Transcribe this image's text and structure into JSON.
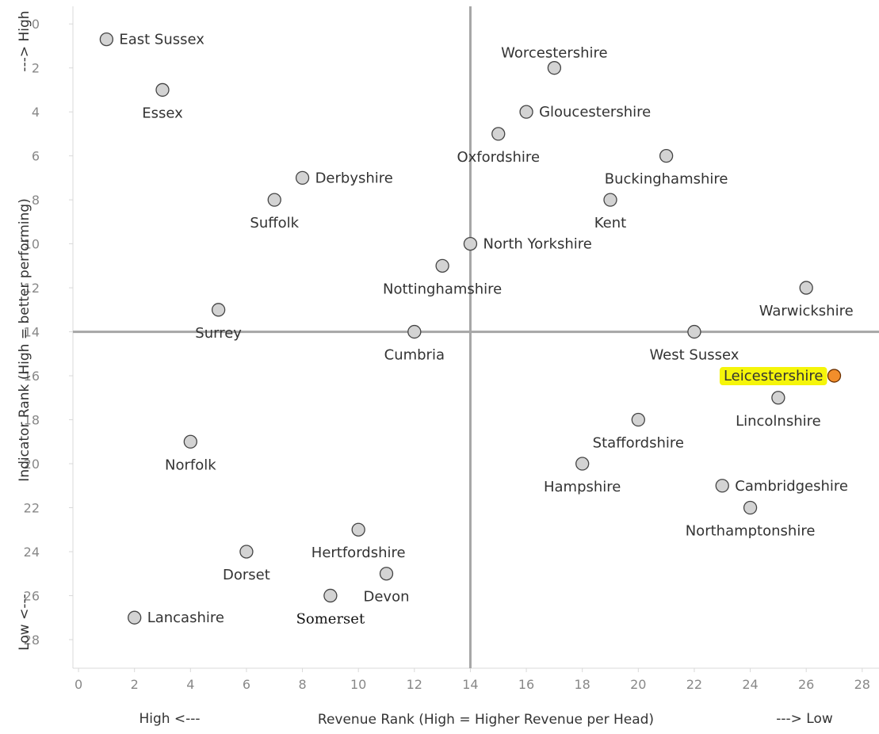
{
  "chart_data": {
    "type": "scatter",
    "xlabel": "Revenue Rank (High = Higher Revenue per Head)",
    "ylabel": "Indicator Rank (High = better performing)",
    "x_low_note": "High <---",
    "x_high_note": "---> Low",
    "y_top_note": "---> High",
    "y_bottom_note": "Low <---",
    "xlim": [
      -0.2,
      28.6
    ],
    "ylim": [
      -0.8,
      29.3
    ],
    "y_inverted": true,
    "x_ticks": [
      0,
      2,
      4,
      6,
      8,
      10,
      12,
      14,
      16,
      18,
      20,
      22,
      24,
      26,
      28
    ],
    "y_ticks": [
      0,
      2,
      4,
      6,
      8,
      10,
      12,
      14,
      16,
      18,
      20,
      22,
      24,
      26,
      28
    ],
    "reference_lines": {
      "x": 14,
      "y": 14
    },
    "point_color": "#d3d3d3",
    "highlight_color": "#f28e2b",
    "highlight_label_bg": "#f5f50a",
    "points": [
      {
        "label": "East Sussex",
        "x": 1,
        "y": 0.7,
        "label_pos": "right"
      },
      {
        "label": "Essex",
        "x": 3,
        "y": 3,
        "label_pos": "below"
      },
      {
        "label": "Worcestershire",
        "x": 17,
        "y": 2,
        "label_pos": "above"
      },
      {
        "label": "Gloucestershire",
        "x": 16,
        "y": 4,
        "label_pos": "right"
      },
      {
        "label": "Oxfordshire",
        "x": 15,
        "y": 5,
        "label_pos": "below"
      },
      {
        "label": "Buckinghamshire",
        "x": 21,
        "y": 6,
        "label_pos": "below"
      },
      {
        "label": "Derbyshire",
        "x": 8,
        "y": 7,
        "label_pos": "right"
      },
      {
        "label": "Suffolk",
        "x": 7,
        "y": 8,
        "label_pos": "below"
      },
      {
        "label": "Kent",
        "x": 19,
        "y": 8,
        "label_pos": "below"
      },
      {
        "label": "North Yorkshire",
        "x": 14,
        "y": 10,
        "label_pos": "right"
      },
      {
        "label": "Nottinghamshire",
        "x": 13,
        "y": 11,
        "label_pos": "below"
      },
      {
        "label": "Warwickshire",
        "x": 26,
        "y": 12,
        "label_pos": "below"
      },
      {
        "label": "Surrey",
        "x": 5,
        "y": 13,
        "label_pos": "below"
      },
      {
        "label": "Cumbria",
        "x": 12,
        "y": 14,
        "label_pos": "below"
      },
      {
        "label": "West Sussex",
        "x": 22,
        "y": 14,
        "label_pos": "below"
      },
      {
        "label": "Leicestershire",
        "x": 27,
        "y": 16,
        "label_pos": "left",
        "highlight": true
      },
      {
        "label": "Lincolnshire",
        "x": 25,
        "y": 17,
        "label_pos": "below"
      },
      {
        "label": "Staffordshire",
        "x": 20,
        "y": 18,
        "label_pos": "below"
      },
      {
        "label": "Norfolk",
        "x": 4,
        "y": 19,
        "label_pos": "below"
      },
      {
        "label": "Hampshire",
        "x": 18,
        "y": 20,
        "label_pos": "below"
      },
      {
        "label": "Cambridgeshire",
        "x": 23,
        "y": 21,
        "label_pos": "right"
      },
      {
        "label": "Northamptonshire",
        "x": 24,
        "y": 22,
        "label_pos": "below"
      },
      {
        "label": "Hertfordshire",
        "x": 10,
        "y": 23,
        "label_pos": "below"
      },
      {
        "label": "Dorset",
        "x": 6,
        "y": 24,
        "label_pos": "below"
      },
      {
        "label": "Devon",
        "x": 11,
        "y": 25,
        "label_pos": "below"
      },
      {
        "label": "Somerset",
        "x": 9,
        "y": 26,
        "label_pos": "below",
        "serif": true
      },
      {
        "label": "Lancashire",
        "x": 2,
        "y": 27,
        "label_pos": "right"
      }
    ]
  }
}
